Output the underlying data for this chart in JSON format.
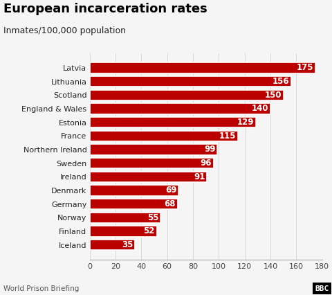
{
  "title": "European incarceration rates",
  "subtitle": "Inmates/100,000 population",
  "source": "World Prison Briefing",
  "bar_color": "#bb0000",
  "background_color": "#f5f5f5",
  "categories": [
    "Iceland",
    "Finland",
    "Norway",
    "Germany",
    "Denmark",
    "Ireland",
    "Sweden",
    "Northern Ireland",
    "France",
    "Estonia",
    "England & Wales",
    "Scotland",
    "Lithuania",
    "Latvia"
  ],
  "values": [
    35,
    52,
    55,
    68,
    69,
    91,
    96,
    99,
    115,
    129,
    140,
    150,
    156,
    175
  ],
  "xlim": [
    0,
    180
  ],
  "xticks": [
    0,
    20,
    40,
    60,
    80,
    100,
    120,
    140,
    160,
    180
  ],
  "label_color": "#ffffff",
  "label_fontsize": 8.5,
  "tick_fontsize": 8,
  "title_fontsize": 13,
  "subtitle_fontsize": 9,
  "source_fontsize": 7.5,
  "bbc_fontsize": 8,
  "bar_height": 0.78
}
